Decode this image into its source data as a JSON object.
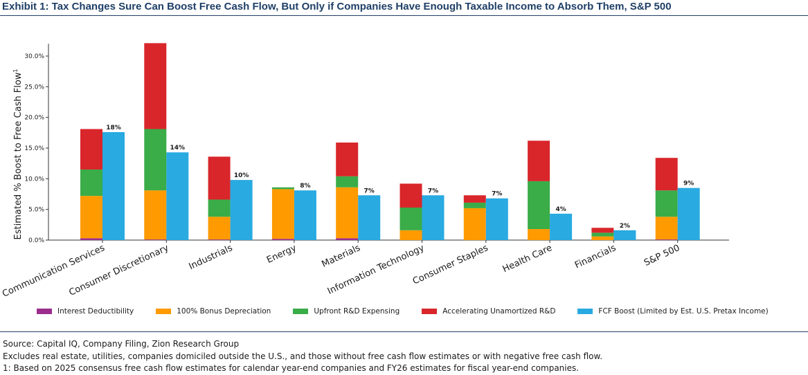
{
  "header": {
    "title": "Exhibit 1: Tax Changes Sure Can Boost Free Cash Flow, But Only if Companies Have Enough Taxable Income to Absorb Them, S&P 500"
  },
  "chart_data": {
    "type": "bar",
    "title": "",
    "ylabel": "Estimated % Boost to Free Cash Flow",
    "ylabel_superscript": "1",
    "ylim": [
      0,
      32
    ],
    "yticks": [
      "0.0%",
      "5.0%",
      "10.0%",
      "15.0%",
      "20.0%",
      "25.0%",
      "30.0%"
    ],
    "ytick_values": [
      0,
      5,
      10,
      15,
      20,
      25,
      30
    ],
    "grid": false,
    "legend_position": "bottom",
    "categories": [
      "Communication Services",
      "Consumer Discretionary",
      "Industrials",
      "Energy",
      "Materials",
      "Information Technology",
      "Consumer Staples",
      "Health Care",
      "Financials",
      "S&P 500"
    ],
    "stacked_series": [
      {
        "name": "Interest Deductibility",
        "color": "#9b2d8e",
        "values": [
          0.3,
          0.1,
          0.1,
          0.2,
          0.3,
          0.0,
          0.0,
          0.0,
          0.0,
          0.1
        ]
      },
      {
        "name": "100% Bonus Depreciation",
        "color": "#ff9a00",
        "values": [
          6.9,
          8.0,
          3.7,
          8.1,
          8.3,
          1.6,
          5.2,
          1.8,
          0.6,
          3.7
        ]
      },
      {
        "name": "Upfront R&D Expensing",
        "color": "#3aac48",
        "values": [
          4.3,
          10.0,
          2.8,
          0.3,
          1.8,
          3.7,
          0.9,
          7.8,
          0.6,
          4.3
        ]
      },
      {
        "name": "Accelerating Unamortized R&D",
        "color": "#d8262b",
        "values": [
          6.6,
          14.0,
          7.0,
          0.0,
          5.5,
          3.9,
          1.2,
          6.6,
          0.8,
          5.3
        ]
      }
    ],
    "fcf_series": {
      "name": "FCF Boost (Limited by Est. U.S. Pretax Income)",
      "color": "#29aae1",
      "values": [
        17.6,
        14.3,
        9.8,
        8.1,
        7.3,
        7.3,
        6.8,
        4.3,
        1.6,
        8.5
      ],
      "labels": [
        "18%",
        "14%",
        "10%",
        "8%",
        "7%",
        "7%",
        "7%",
        "4%",
        "2%",
        "9%"
      ]
    }
  },
  "notes": {
    "source": "Source: Capital IQ, Company Filing, Zion Research Group",
    "excludes": "Excludes real estate, utilities, companies domiciled outside the U.S., and those without free cash flow estimates or with negative free cash flow.",
    "footnote": "1: Based on 2025 consensus free cash flow estimates for calendar year-end companies and FY26 estimates for fiscal year-end companies."
  }
}
